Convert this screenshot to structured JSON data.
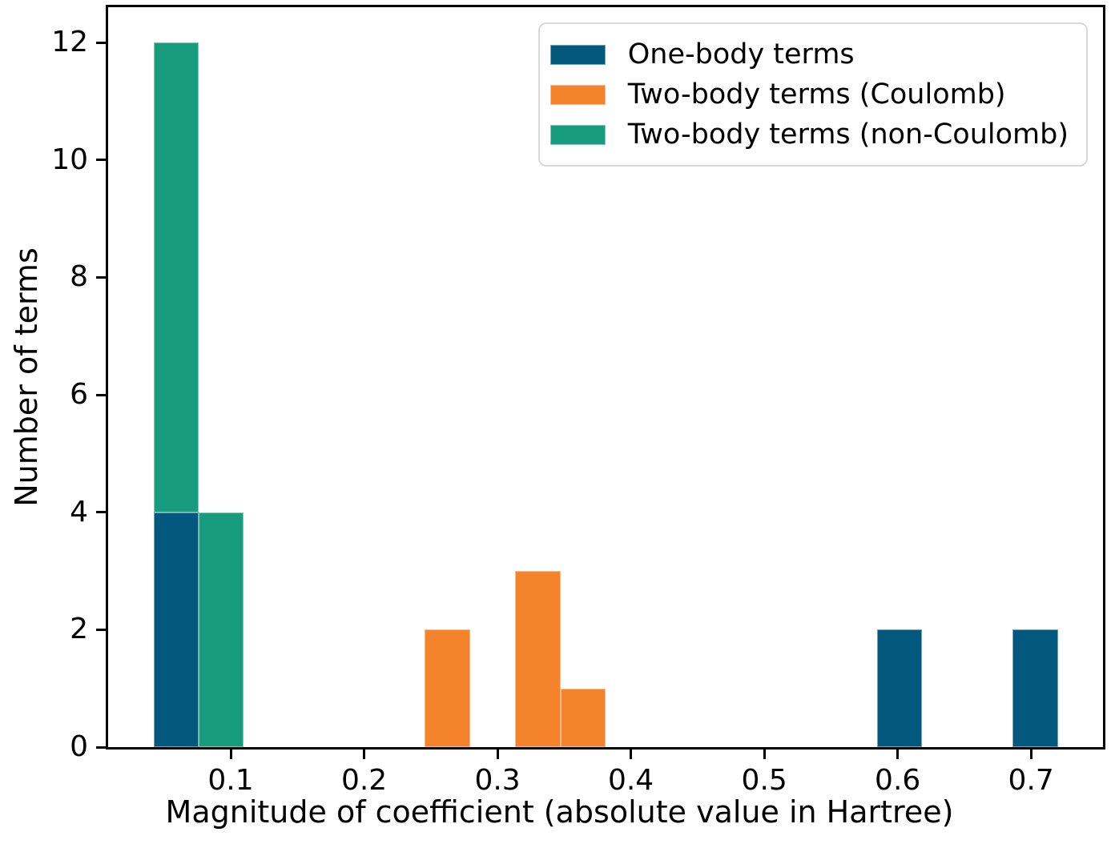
{
  "chart_data": {
    "type": "histogram",
    "stacked": true,
    "title": "",
    "xlabel": "Magnitude of coefficient (absolute value in Hartree)",
    "ylabel": "Number of terms",
    "xlim": [
      0.0081,
      0.7539
    ],
    "ylim": [
      0,
      12.6
    ],
    "grid": false,
    "legend_position": "upper right",
    "x_ticks": {
      "values": [
        0.1,
        0.2,
        0.3,
        0.4,
        0.5,
        0.6,
        0.7
      ],
      "labels": [
        "0.1",
        "0.2",
        "0.3",
        "0.4",
        "0.5",
        "0.6",
        "0.7"
      ]
    },
    "y_ticks": {
      "values": [
        0,
        2,
        4,
        6,
        8,
        10,
        12
      ],
      "labels": [
        "0",
        "2",
        "4",
        "6",
        "8",
        "10",
        "12"
      ]
    },
    "bin_edges": [
      0.042,
      0.0759,
      0.1098,
      0.1437,
      0.1776,
      0.2115,
      0.2454,
      0.2793,
      0.3132,
      0.3471,
      0.381,
      0.4149,
      0.4488,
      0.4827,
      0.5166,
      0.5505,
      0.5844,
      0.6183,
      0.6522,
      0.6861,
      0.72
    ],
    "series": [
      {
        "name": "One-body terms",
        "color": "#02587d",
        "counts": [
          4,
          0,
          0,
          0,
          0,
          0,
          0,
          0,
          0,
          0,
          0,
          0,
          0,
          0,
          0,
          0,
          2,
          0,
          0,
          2
        ]
      },
      {
        "name": "Two-body terms (Coulomb)",
        "color": "#f5832b",
        "counts": [
          0,
          0,
          0,
          0,
          0,
          0,
          2,
          0,
          3,
          1,
          0,
          0,
          0,
          0,
          0,
          0,
          0,
          0,
          0,
          0
        ]
      },
      {
        "name": "Two-body terms (non-Coulomb)",
        "color": "#189c7e",
        "counts": [
          8,
          4,
          0,
          0,
          0,
          0,
          0,
          0,
          0,
          0,
          0,
          0,
          0,
          0,
          0,
          0,
          0,
          0,
          0,
          0
        ]
      }
    ],
    "colors": {
      "spine": "#000000",
      "legend_border": "#d8d8d8",
      "background": "#ffffff"
    }
  }
}
